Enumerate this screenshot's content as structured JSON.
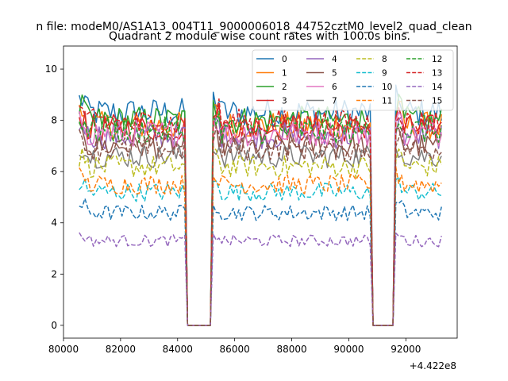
{
  "suptitle": "n file: modeM0/AS1A13_004T11_9000006018_44752cztM0_level2_quad_clean",
  "chart_data": {
    "type": "line",
    "title": "Quadrant 2 module wise count rates with 100.0s bins.",
    "xlabel": "",
    "ylabel": "",
    "x_offset_label": "+4.422e8",
    "x_offset": 442200000,
    "xlim": [
      80000,
      93800
    ],
    "ylim": [
      -0.5,
      10.9
    ],
    "x_ticks": [
      80000,
      82000,
      84000,
      86000,
      88000,
      90000,
      92000
    ],
    "y_ticks": [
      0,
      2,
      4,
      6,
      8,
      10
    ],
    "grid": false,
    "legend_position": "top-right",
    "legend_columns": 4,
    "bin_seconds": 100,
    "segments": [
      {
        "start": 80550,
        "end": 84250
      },
      {
        "start": 85250,
        "end": 90750
      },
      {
        "start": 91650,
        "end": 93250
      }
    ],
    "gap_level": 0,
    "series": [
      {
        "name": "0",
        "color": "#1f77b4",
        "dash": "solid",
        "mean": 8.3
      },
      {
        "name": "1",
        "color": "#ff7f0e",
        "dash": "solid",
        "mean": 7.8
      },
      {
        "name": "2",
        "color": "#2ca02c",
        "dash": "solid",
        "mean": 8.0
      },
      {
        "name": "3",
        "color": "#d62728",
        "dash": "solid",
        "mean": 7.7
      },
      {
        "name": "4",
        "color": "#9467bd",
        "dash": "solid",
        "mean": 7.4
      },
      {
        "name": "5",
        "color": "#8c564b",
        "dash": "solid",
        "mean": 7.0
      },
      {
        "name": "6",
        "color": "#e377c2",
        "dash": "solid",
        "mean": 7.5
      },
      {
        "name": "7",
        "color": "#7f7f7f",
        "dash": "solid",
        "mean": 6.6
      },
      {
        "name": "8",
        "color": "#bcbd22",
        "dash": "dashed",
        "mean": 6.2
      },
      {
        "name": "9",
        "color": "#17becf",
        "dash": "dashed",
        "mean": 5.2
      },
      {
        "name": "10",
        "color": "#1f77b4",
        "dash": "dashed",
        "mean": 4.4
      },
      {
        "name": "11",
        "color": "#ff7f0e",
        "dash": "dashed",
        "mean": 5.5
      },
      {
        "name": "12",
        "color": "#2ca02c",
        "dash": "dashed",
        "mean": 7.6
      },
      {
        "name": "13",
        "color": "#d62728",
        "dash": "dashed",
        "mean": 7.9
      },
      {
        "name": "14",
        "color": "#9467bd",
        "dash": "dashed",
        "mean": 3.3
      },
      {
        "name": "15",
        "color": "#8c564b",
        "dash": "dashed",
        "mean": 6.9
      }
    ]
  }
}
